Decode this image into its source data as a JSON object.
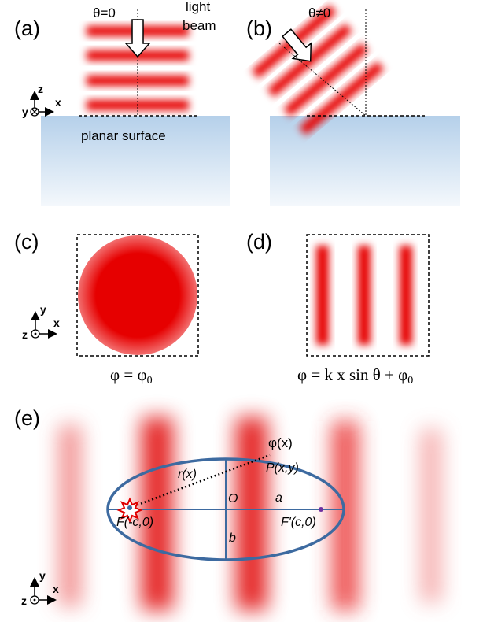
{
  "panel_a": {
    "label": "(a)",
    "angle": "θ=0",
    "beam": [
      "light",
      "beam"
    ],
    "surface": "planar surface",
    "axes": [
      "z",
      "y",
      "x"
    ]
  },
  "panel_b": {
    "label": "(b)",
    "angle": "θ≠0"
  },
  "panel_c": {
    "label": "(c)",
    "axes": [
      "y",
      "z",
      "x"
    ],
    "formula": {
      "main": "φ = φ",
      "sub": "0"
    }
  },
  "panel_d": {
    "label": "(d)",
    "formula": {
      "main": "φ = k x sin θ + φ",
      "sub": "0"
    }
  },
  "panel_e": {
    "label": "(e)",
    "axes": [
      "y",
      "z",
      "x"
    ],
    "phase": "φ(x)",
    "radius": "r(x)",
    "point": "P(x,y)",
    "origin": "O",
    "semi_major": "a",
    "semi_minor": "b",
    "focus_left": "F(-c,0)",
    "focus_right": "F′(c,0)"
  }
}
